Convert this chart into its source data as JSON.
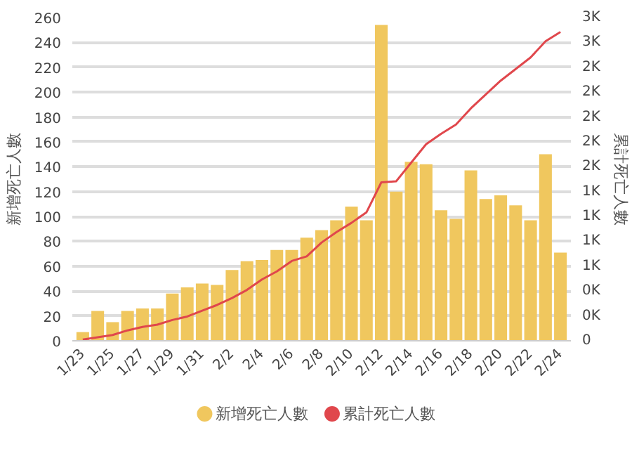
{
  "chart_data": {
    "type": "bar",
    "categories": [
      "1/23",
      null,
      "1/25",
      null,
      "1/27",
      null,
      "1/29",
      null,
      "1/31",
      null,
      "2/2",
      null,
      "2/4",
      null,
      "2/6",
      null,
      "2/8",
      null,
      "2/10",
      null,
      "2/12",
      null,
      "2/14",
      null,
      "2/16",
      null,
      "2/18",
      null,
      "2/20",
      null,
      "2/22",
      null,
      "2/24"
    ],
    "ylabel": "新增死亡人數",
    "y2label": "累計死亡人數",
    "series": [
      {
        "name": "新增死亡人數",
        "color": "#f0c75e",
        "values": [
          7,
          24,
          15,
          24,
          26,
          26,
          38,
          43,
          46,
          45,
          57,
          64,
          65,
          73,
          73,
          83,
          89,
          97,
          108,
          97,
          254,
          120,
          144,
          142,
          105,
          98,
          137,
          114,
          117,
          109,
          97,
          150,
          71
        ]
      },
      {
        "name": "累計死亡人數",
        "color": "#e0474c",
        "type": "line",
        "axis": "y2",
        "values": [
          10,
          30,
          50,
          90,
          120,
          140,
          180,
          210,
          260,
          310,
          370,
          440,
          530,
          600,
          690,
          730,
          850,
          940,
          1020,
          1110,
          1370,
          1380,
          1540,
          1700,
          1790,
          1870,
          2010,
          2130,
          2250,
          2350,
          2450,
          2590,
          2670
        ]
      }
    ],
    "ylim": [
      0,
      260
    ],
    "yticks": [
      0,
      20,
      40,
      60,
      80,
      100,
      120,
      140,
      160,
      180,
      200,
      220,
      240,
      260
    ],
    "y2lim": [
      0,
      2795
    ],
    "y2ticks": [
      0,
      {
        "value": 215,
        "label": "0K"
      },
      {
        "value": 430,
        "label": "0K"
      },
      {
        "value": 645,
        "label": "1K"
      },
      {
        "value": 860,
        "label": "1K"
      },
      {
        "value": 1075,
        "label": "1K"
      },
      {
        "value": 1290,
        "label": "1K"
      },
      {
        "value": 1505,
        "label": "2K"
      },
      {
        "value": 1720,
        "label": "2K"
      },
      {
        "value": 1935,
        "label": "2K"
      },
      {
        "value": 2150,
        "label": "2K"
      },
      {
        "value": 2365,
        "label": "2K"
      },
      {
        "value": 2580,
        "label": "3K"
      },
      {
        "value": 2795,
        "label": "3K"
      }
    ],
    "grid": "y",
    "legend": "bottom"
  }
}
